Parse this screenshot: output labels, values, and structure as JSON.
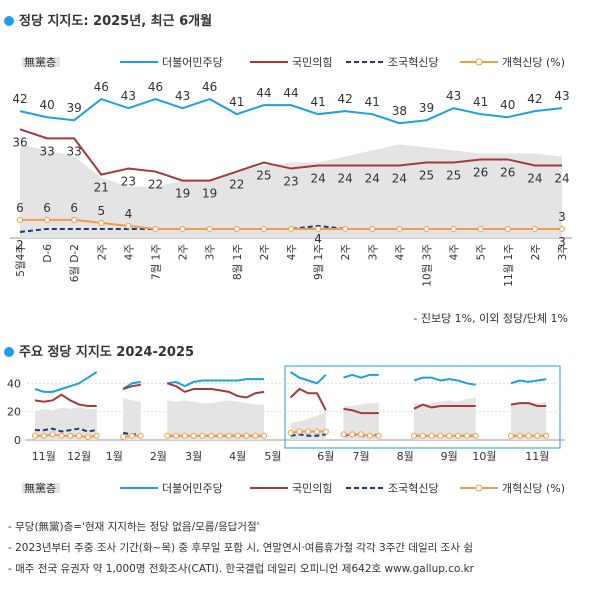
{
  "chart_data": [
    {
      "type": "line",
      "title": "정당 지지도: 2025년, 최근 6개월",
      "categories": [
        "5월4주",
        "D-6",
        "6월 D-2",
        "2주",
        "4주",
        "7월 1주",
        "2주",
        "3주",
        "8월 1주",
        "2주",
        "4주",
        "9월 1주",
        "2주",
        "3주",
        "4주",
        "10월 3주",
        "4주",
        "5주",
        "11월 1주",
        "2주",
        "3주"
      ],
      "ylim": [
        0,
        50
      ],
      "series": [
        {
          "name": "無黨층",
          "color": "#e4e4e4",
          "style": "area",
          "values": [
            31,
            29,
            27,
            20,
            17,
            17,
            19,
            19,
            22,
            24,
            25,
            25,
            27,
            29,
            31,
            30,
            29,
            28,
            28,
            28,
            27
          ]
        },
        {
          "name": "더불어민주당",
          "color": "#1ba1e6",
          "style": "solid",
          "values": [
            42,
            40,
            39,
            46,
            43,
            46,
            43,
            46,
            41,
            44,
            44,
            41,
            42,
            41,
            38,
            39,
            43,
            41,
            40,
            42,
            43
          ],
          "value_labels": [
            42,
            40,
            39,
            46,
            43,
            46,
            43,
            46,
            41,
            44,
            44,
            41,
            42,
            41,
            38,
            39,
            43,
            41,
            40,
            42,
            43
          ]
        },
        {
          "name": "국민의힘",
          "color": "#a63a3a",
          "style": "solid",
          "values": [
            36,
            33,
            33,
            21,
            23,
            22,
            19,
            19,
            22,
            25,
            23,
            24,
            24,
            24,
            24,
            25,
            25,
            26,
            26,
            24,
            24
          ],
          "value_labels": [
            36,
            33,
            33,
            21,
            23,
            22,
            19,
            19,
            22,
            25,
            23,
            24,
            24,
            24,
            24,
            25,
            25,
            26,
            26,
            24,
            24
          ]
        },
        {
          "name": "조국혁신당",
          "color": "#1e3a7a",
          "style": "dashed",
          "values": [
            2,
            3,
            3,
            3,
            3,
            3,
            3,
            3,
            3,
            3,
            3,
            4,
            3,
            3,
            3,
            3,
            3,
            3,
            3,
            3,
            3
          ],
          "value_labels": [
            2,
            null,
            null,
            null,
            null,
            null,
            null,
            null,
            null,
            null,
            null,
            4,
            null,
            null,
            null,
            null,
            null,
            null,
            null,
            null,
            3
          ]
        },
        {
          "name": "개혁신당 (%)",
          "color": "#f39c45",
          "style": "marker",
          "values": [
            6,
            6,
            6,
            5,
            4,
            3,
            3,
            3,
            3,
            3,
            3,
            3,
            3,
            3,
            3,
            3,
            3,
            3,
            3,
            3,
            3
          ],
          "value_labels": [
            6,
            6,
            6,
            5,
            4,
            null,
            null,
            null,
            null,
            null,
            null,
            null,
            null,
            null,
            null,
            null,
            null,
            null,
            null,
            null,
            3
          ]
        }
      ],
      "note": "- 진보당 1%, 이외 정당/단체 1%"
    },
    {
      "type": "line",
      "title": "주요 정당 지지도 2024-2025",
      "categories": [
        null,
        "11월",
        null,
        null,
        null,
        "12월",
        null,
        null,
        null,
        "1월",
        null,
        null,
        null,
        null,
        "2월",
        null,
        null,
        null,
        "3월",
        null,
        null,
        null,
        null,
        "4월",
        null,
        null,
        null,
        "5월",
        null,
        null,
        null,
        null,
        null,
        "6월",
        null,
        null,
        null,
        "7월",
        null,
        null,
        null,
        null,
        "8월",
        null,
        null,
        null,
        null,
        "9월",
        null,
        null,
        null,
        "10월",
        null,
        null,
        null,
        null,
        null,
        "11월",
        null,
        null
      ],
      "ylim": [
        0,
        48
      ],
      "yticks": [
        0,
        20,
        40
      ],
      "grid": true,
      "series": [
        {
          "name": "無黨층",
          "color": "#e4e4e4",
          "style": "area",
          "values": [
            20,
            22,
            21,
            23,
            22,
            23,
            22,
            22,
            null,
            null,
            30,
            28,
            27,
            null,
            null,
            28,
            27,
            28,
            27,
            26,
            26,
            27,
            28,
            27,
            26,
            25,
            25,
            null,
            null,
            12,
            13,
            15,
            17,
            20,
            null,
            24,
            24,
            25,
            26,
            26,
            null,
            null,
            null,
            26,
            25,
            26,
            27,
            28,
            27,
            29,
            30,
            null,
            null,
            null,
            26,
            25,
            26,
            26,
            27,
            null
          ]
        },
        {
          "name": "더불어민주당",
          "color": "#1ba1e6",
          "style": "solid",
          "values": [
            36,
            34,
            34,
            36,
            38,
            40,
            44,
            48,
            null,
            null,
            36,
            40,
            41,
            null,
            null,
            40,
            41,
            38,
            41,
            42,
            42,
            42,
            42,
            42,
            43,
            43,
            43,
            null,
            null,
            48,
            44,
            42,
            40,
            46,
            null,
            44,
            46,
            44,
            46,
            46,
            null,
            null,
            null,
            42,
            44,
            44,
            42,
            43,
            42,
            40,
            39,
            null,
            null,
            null,
            40,
            42,
            41,
            42,
            43,
            null
          ]
        },
        {
          "name": "국민의힘",
          "color": "#a63a3a",
          "style": "solid",
          "values": [
            28,
            27,
            28,
            32,
            28,
            25,
            24,
            24,
            null,
            null,
            36,
            38,
            39,
            null,
            null,
            40,
            38,
            34,
            36,
            36,
            36,
            35,
            34,
            31,
            30,
            33,
            34,
            null,
            null,
            30,
            36,
            33,
            33,
            21,
            null,
            22,
            21,
            19,
            19,
            19,
            null,
            null,
            null,
            22,
            25,
            23,
            24,
            24,
            24,
            24,
            24,
            null,
            null,
            null,
            25,
            26,
            26,
            24,
            24,
            null
          ]
        },
        {
          "name": "조국혁신당",
          "color": "#1e3a7a",
          "style": "dashed",
          "values": [
            7,
            7,
            8,
            6,
            7,
            8,
            6,
            7,
            null,
            null,
            5,
            4,
            4,
            null,
            null,
            3,
            3,
            3,
            3,
            3,
            3,
            3,
            3,
            3,
            3,
            3,
            3,
            null,
            null,
            3,
            4,
            3,
            3,
            4,
            null,
            3,
            4,
            3,
            3,
            4,
            null,
            null,
            null,
            3,
            3,
            3,
            3,
            3,
            3,
            3,
            3,
            null,
            null,
            null,
            3,
            3,
            3,
            3,
            3,
            null
          ]
        },
        {
          "name": "개혁신당 (%)",
          "color": "#f39c45",
          "style": "marker",
          "values": [
            3,
            3,
            4,
            3,
            3,
            3,
            2,
            3,
            null,
            null,
            2,
            3,
            3,
            null,
            null,
            3,
            3,
            3,
            3,
            3,
            3,
            3,
            3,
            3,
            3,
            3,
            3,
            null,
            null,
            5,
            6,
            6,
            6,
            6,
            null,
            4,
            4,
            4,
            3,
            3,
            null,
            null,
            null,
            3,
            3,
            3,
            3,
            3,
            3,
            3,
            3,
            null,
            null,
            null,
            3,
            3,
            3,
            3,
            3,
            null
          ]
        }
      ],
      "notes": [
        "- 무당(無黨)층='현재 지지하는 정당 없음/모름/응답거절'",
        "- 2023년부터 주중 조사 기간(화~목) 중 후무일 포함 시, 연말연시·여름휴가철 각각 3주간 데일리 조사 쉼",
        "- 매주 전국 유권자 약 1,000명 전화조사(CATI). 한국갤럽 데일리 오피니언 제642호 www.gallup.co.kr"
      ]
    }
  ]
}
